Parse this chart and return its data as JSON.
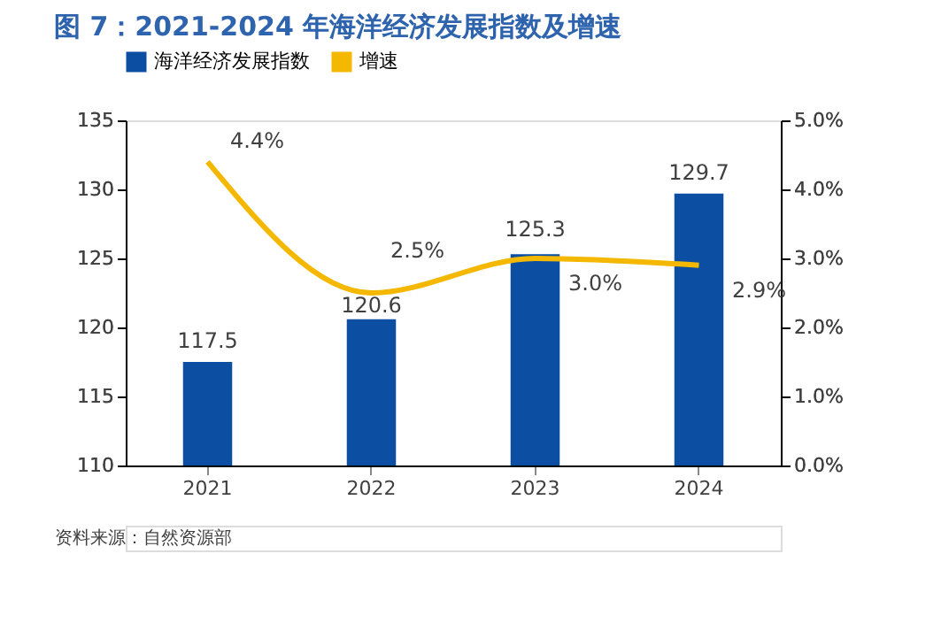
{
  "chart_data": {
    "type": "bar",
    "title": "图 7：2021-2024 年海洋经济发展指数及增速",
    "categories": [
      "2021",
      "2022",
      "2023",
      "2024"
    ],
    "series": [
      {
        "name": "海洋经济发展指数",
        "color": "#0b4ea2",
        "values": [
          117.5,
          120.6,
          125.3,
          129.7
        ]
      },
      {
        "name": "增速",
        "type": "line",
        "axis": "y2",
        "color": "#f5b800",
        "values": [
          4.4,
          2.5,
          3.0,
          2.9
        ],
        "value_labels": [
          "4.4%",
          "2.5%",
          "3.0%",
          "2.9%"
        ]
      }
    ],
    "data_labels": true,
    "ylim": [
      110,
      135
    ],
    "yticks": [
      110,
      115,
      120,
      125,
      130,
      135
    ],
    "y2lim": [
      0,
      5
    ],
    "y2ticks": [
      {
        "value": 0,
        "label": "0.0%"
      },
      {
        "value": 1,
        "label": "1.0%"
      },
      {
        "value": 2,
        "label": "2.0%"
      },
      {
        "value": 3,
        "label": "3.0%"
      },
      {
        "value": 4,
        "label": "4.0%"
      },
      {
        "value": 5,
        "label": "5.0%"
      }
    ],
    "legend": "top",
    "grid": false,
    "annotations": [
      "资料来源：自然资源部"
    ]
  }
}
